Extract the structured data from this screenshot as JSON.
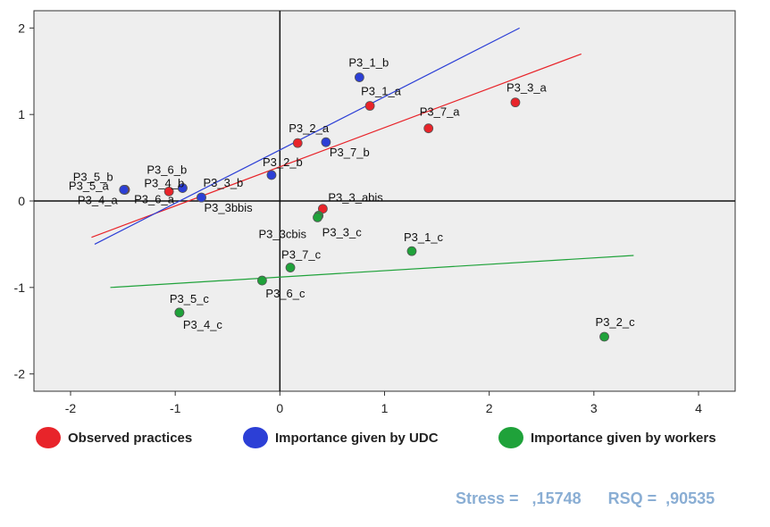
{
  "chart_data": {
    "type": "scatter",
    "xlim": [
      -2.35,
      4.35
    ],
    "ylim": [
      -2.2,
      2.2
    ],
    "x_ticks": [
      -2,
      -1,
      0,
      1,
      2,
      3,
      4
    ],
    "y_ticks": [
      -2,
      -1,
      0,
      1,
      2
    ],
    "grid": false,
    "reference_lines": {
      "x": 0,
      "y": 0
    },
    "colors": {
      "observed": "#e8242a",
      "udc": "#2c3fd6",
      "workers": "#1fa23a",
      "background": "#eeeeee"
    },
    "series": [
      {
        "name": "Observed practices",
        "color_key": "observed",
        "points": [
          {
            "label": "P3_1_a",
            "x": 0.86,
            "y": 1.1
          },
          {
            "label": "P3_2_a",
            "x": 0.17,
            "y": 0.67
          },
          {
            "label": "P3_3_a",
            "x": 2.25,
            "y": 1.14
          },
          {
            "label": "P3_3_abis",
            "x": 0.41,
            "y": -0.09
          },
          {
            "label": "P3_4_a",
            "x": -1.48,
            "y": 0.13
          },
          {
            "label": "P3_5_a",
            "x": -1.48,
            "y": 0.13
          },
          {
            "label": "P3_6_a",
            "x": -1.06,
            "y": 0.11
          },
          {
            "label": "P3_7_a",
            "x": 1.42,
            "y": 0.84
          }
        ],
        "fit_line": {
          "x": [
            -1.8,
            2.88
          ],
          "y": [
            -0.42,
            1.7
          ]
        }
      },
      {
        "name": "Importance given by UDC",
        "color_key": "udc",
        "points": [
          {
            "label": "P3_1_b",
            "x": 0.76,
            "y": 1.43
          },
          {
            "label": "P3_2_b",
            "x": -0.08,
            "y": 0.3
          },
          {
            "label": "P3_3_b",
            "x": -0.75,
            "y": 0.04
          },
          {
            "label": "P3_3bbis",
            "x": -0.75,
            "y": 0.04
          },
          {
            "label": "P3_4_b",
            "x": -0.93,
            "y": 0.15
          },
          {
            "label": "P3_5_b",
            "x": -1.49,
            "y": 0.13
          },
          {
            "label": "P3_6_b",
            "x": -0.93,
            "y": 0.15
          },
          {
            "label": "P3_7_b",
            "x": 0.44,
            "y": 0.68
          }
        ],
        "fit_line": {
          "x": [
            -1.77,
            2.29
          ],
          "y": [
            -0.5,
            2.0
          ]
        }
      },
      {
        "name": "Importance given by workers",
        "color_key": "workers",
        "points": [
          {
            "label": "P3_1_c",
            "x": 1.26,
            "y": -0.58
          },
          {
            "label": "P3_2_c",
            "x": 3.1,
            "y": -1.57
          },
          {
            "label": "P3_3_c",
            "x": 0.37,
            "y": -0.17
          },
          {
            "label": "P3_3cbis",
            "x": 0.36,
            "y": -0.19
          },
          {
            "label": "P3_4_c",
            "x": -0.96,
            "y": -1.29
          },
          {
            "label": "P3_5_c",
            "x": -0.96,
            "y": -1.29
          },
          {
            "label": "P3_6_c",
            "x": -0.17,
            "y": -0.92
          },
          {
            "label": "P3_7_c",
            "x": 0.1,
            "y": -0.77
          }
        ],
        "fit_line": {
          "x": [
            -1.62,
            3.38
          ],
          "y": [
            -1.0,
            -0.63
          ]
        }
      }
    ],
    "legend": [
      {
        "label": "Observed practices",
        "color_key": "observed"
      },
      {
        "label": "Importance given by UDC",
        "color_key": "udc"
      },
      {
        "label": "Importance given by workers",
        "color_key": "workers"
      }
    ],
    "annotation": "Stress =   ,15748      RSQ =  ,90535"
  }
}
